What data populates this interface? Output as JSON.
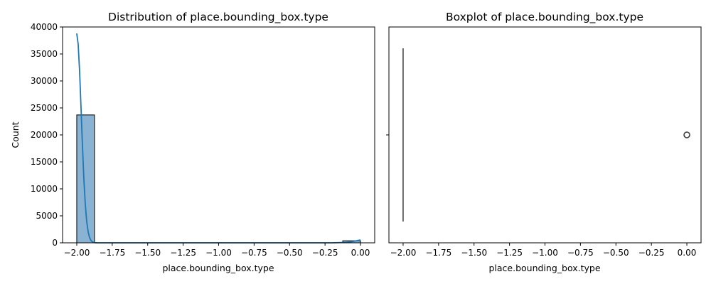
{
  "chart_data": [
    {
      "type": "bar",
      "title": "Distribution of place.bounding_box.type",
      "xlabel": "place.bounding_box.type",
      "ylabel": "Count",
      "xlim": [
        -2.1,
        0.1
      ],
      "ylim": [
        0,
        40000
      ],
      "xticks": [
        -2.0,
        -1.75,
        -1.5,
        -1.25,
        -1.0,
        -0.75,
        -0.5,
        -0.25,
        0.0
      ],
      "xtick_labels": [
        "−2.00",
        "−1.75",
        "−1.50",
        "−1.25",
        "−1.00",
        "−0.75",
        "−0.50",
        "−0.25",
        "0.00"
      ],
      "yticks": [
        0,
        5000,
        10000,
        15000,
        20000,
        25000,
        30000,
        35000,
        40000
      ],
      "ytick_labels": [
        "0",
        "5000",
        "10000",
        "15000",
        "20000",
        "25000",
        "30000",
        "35000",
        "40000"
      ],
      "bins": [
        {
          "x0": -2.0,
          "x1": -1.875,
          "count": 23700
        },
        {
          "x0": -1.875,
          "x1": -0.125,
          "count": 0
        },
        {
          "x0": -0.125,
          "x1": 0.0,
          "count": 380
        }
      ],
      "kde": {
        "x": [
          -2.0,
          -1.99,
          -1.98,
          -1.97,
          -1.96,
          -1.95,
          -1.94,
          -1.93,
          -1.92,
          -1.91,
          -1.9,
          -1.89,
          -1.88,
          -1.87,
          -1.86,
          -1.85,
          -1.8,
          -1.7,
          -1.5,
          -1.0,
          -0.5,
          -0.2,
          -0.1,
          -0.05,
          -0.02,
          0.0
        ],
        "y": [
          38800,
          36800,
          31800,
          25100,
          18100,
          11900,
          7200,
          4000,
          2100,
          1000,
          440,
          180,
          70,
          20,
          5,
          0,
          0,
          0,
          0,
          0,
          0,
          0,
          80,
          260,
          430,
          520
        ]
      },
      "grid": false,
      "bar_color": "#8ab3d3",
      "line_color": "#1f77b4"
    },
    {
      "type": "boxplot",
      "title": "Boxplot of place.bounding_box.type",
      "xlabel": "place.bounding_box.type",
      "xlim": [
        -2.1,
        0.1
      ],
      "xticks": [
        -2.0,
        -1.75,
        -1.5,
        -1.25,
        -1.0,
        -0.75,
        -0.5,
        -0.25,
        0.0
      ],
      "xtick_labels": [
        "−2.00",
        "−1.75",
        "−1.50",
        "−1.25",
        "−1.00",
        "−0.75",
        "−0.50",
        "−0.25",
        "0.00"
      ],
      "box": {
        "q1": -2.0,
        "median": -2.0,
        "q3": -2.0,
        "whisker_low": -2.0,
        "whisker_high": -2.0
      },
      "outliers": [
        0.0
      ],
      "grid": false,
      "line_color": "#3d3d3d"
    }
  ]
}
